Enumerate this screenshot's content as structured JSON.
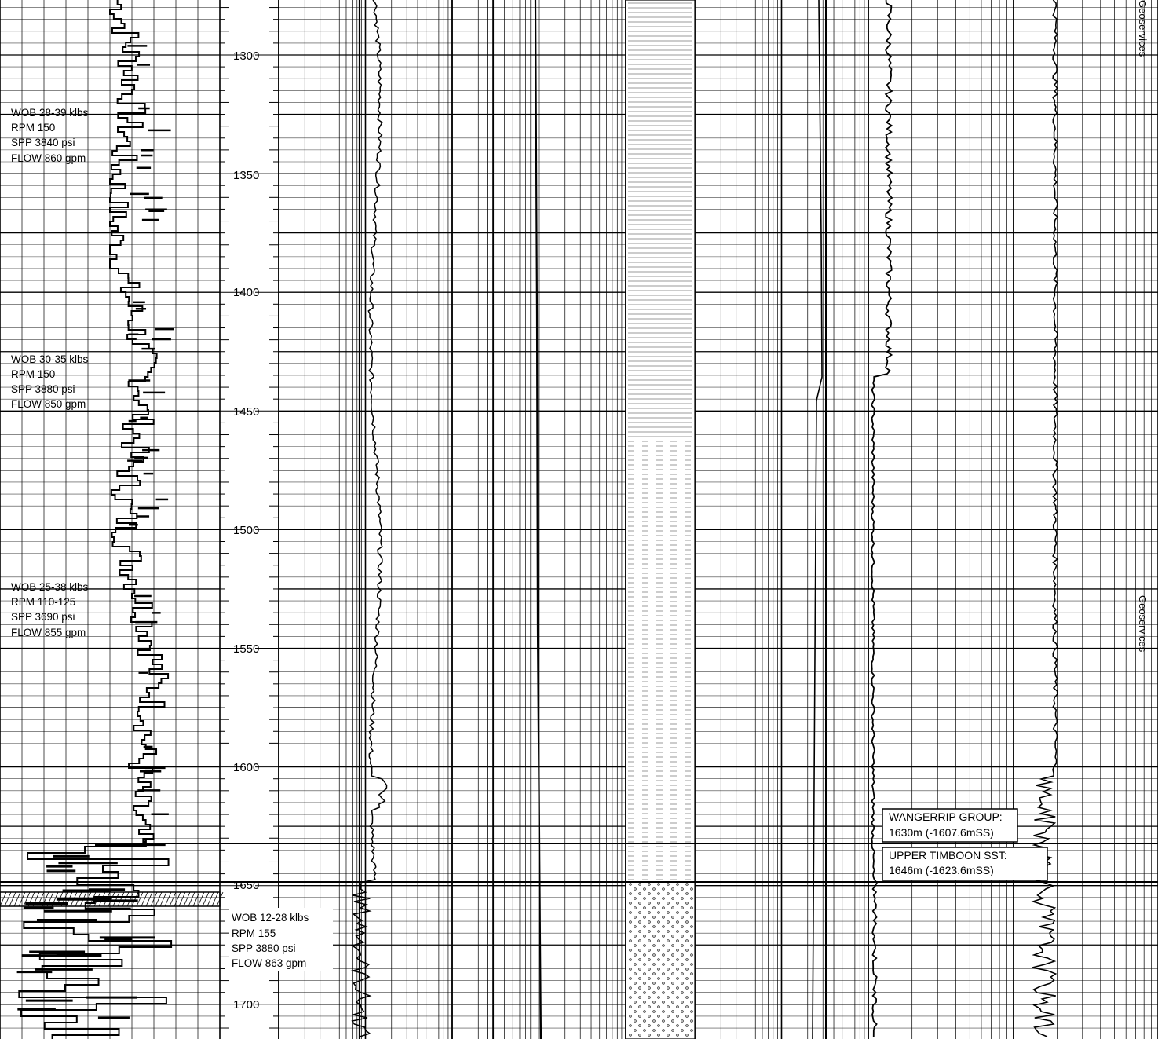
{
  "depth_axis": {
    "labels": [
      "1300",
      "1350",
      "1400",
      "1450",
      "1500",
      "1550",
      "1600",
      "1650",
      "1700"
    ]
  },
  "drilling_parameters": [
    {
      "wob": "WOB 28-39 klbs",
      "rpm": "RPM 150",
      "spp": "SPP 3840 psi",
      "flow": "FLOW 860 gpm"
    },
    {
      "wob": "WOB 30-35 klbs",
      "rpm": "RPM 150",
      "spp": "SPP 3880 psi",
      "flow": "FLOW 850 gpm"
    },
    {
      "wob": "WOB 25-38 klbs",
      "rpm": "RPM 110-125",
      "spp": "SPP 3690 psi",
      "flow": "FLOW 855 gpm"
    },
    {
      "wob": "WOB 12-28 klbs",
      "rpm": "RPM 155",
      "spp": "SPP 3880 psi",
      "flow": "FLOW 863 gpm"
    }
  ],
  "formation_tops": [
    {
      "name": "WANGERRIP GROUP:",
      "depth": "1630m (-1607.6mSS)"
    },
    {
      "name": "UPPER TIMBOON SST:",
      "depth": "1646m (-1623.6mSS)"
    }
  ],
  "watermarks": [
    "Geoservices",
    "Geoservices"
  ],
  "colors": {
    "ink": "#000000",
    "paper": "#ffffff"
  }
}
